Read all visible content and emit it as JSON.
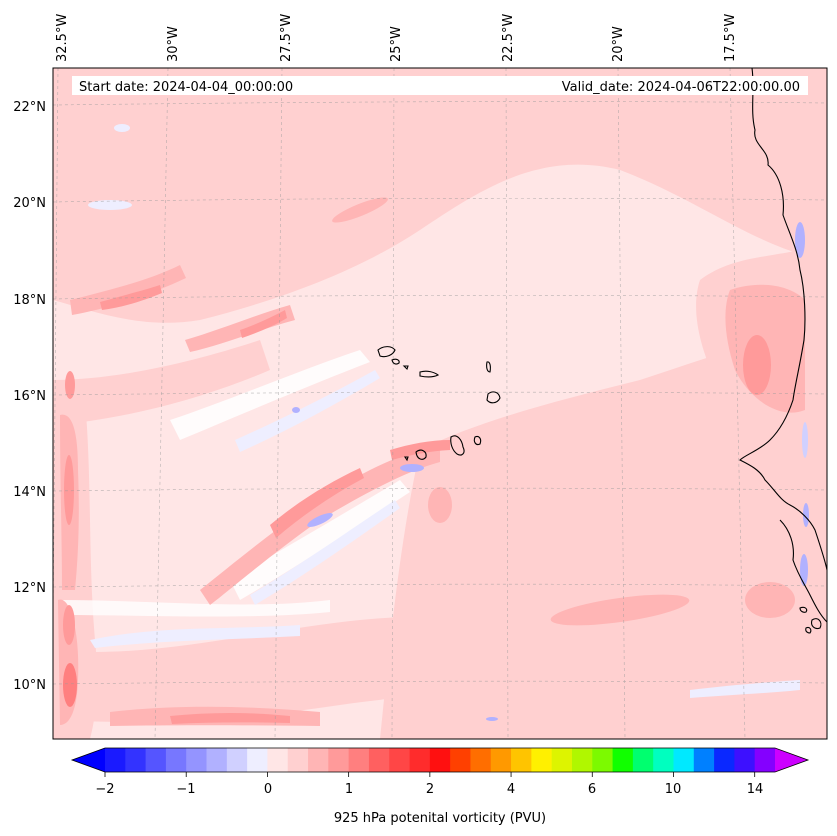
{
  "header": {
    "start_date": "Start date: 2024-04-04_00:00:00",
    "valid_date": "Valid_date: 2024-04-06T22:00:00.00"
  },
  "longitude_labels": [
    "32.5°W",
    "30°W",
    "27.5°W",
    "25°W",
    "22.5°W",
    "20°W",
    "17.5°W"
  ],
  "latitude_labels": [
    "22°N",
    "20°N",
    "18°N",
    "16°N",
    "14°N",
    "12°N",
    "10°N"
  ],
  "colorbar": {
    "label": "925 hPa potenital vorticity (PVU)",
    "tick_labels": [
      "−2",
      "−1",
      "0",
      "1",
      "2",
      "4",
      "6",
      "10",
      "14"
    ],
    "colors": [
      "#1a1aff",
      "#3333ff",
      "#5555ff",
      "#7777ff",
      "#9494ff",
      "#b1b1ff",
      "#d0d0ff",
      "#eeeeff",
      "#ffe6e6",
      "#ffd0d0",
      "#ffb5b5",
      "#ff9a9a",
      "#ff7f7f",
      "#ff6060",
      "#ff4646",
      "#ff2c2c",
      "#ff1010",
      "#ff4000",
      "#ff6e00",
      "#ff9900",
      "#ffc400",
      "#fff000",
      "#ddf400",
      "#b0f700",
      "#7cfa00",
      "#11ff00",
      "#00ff6f",
      "#00ffbf",
      "#00e9ff",
      "#0080ff",
      "#0a28ff",
      "#3d10ff",
      "#8400ff"
    ],
    "under_color": "#0000ff",
    "over_color": "#cc00ff"
  },
  "map": {
    "ocean_base_color": "#ffe6e6",
    "gridlines": "dashed",
    "islands": "Cape Verde",
    "coastline": "West Africa"
  }
}
